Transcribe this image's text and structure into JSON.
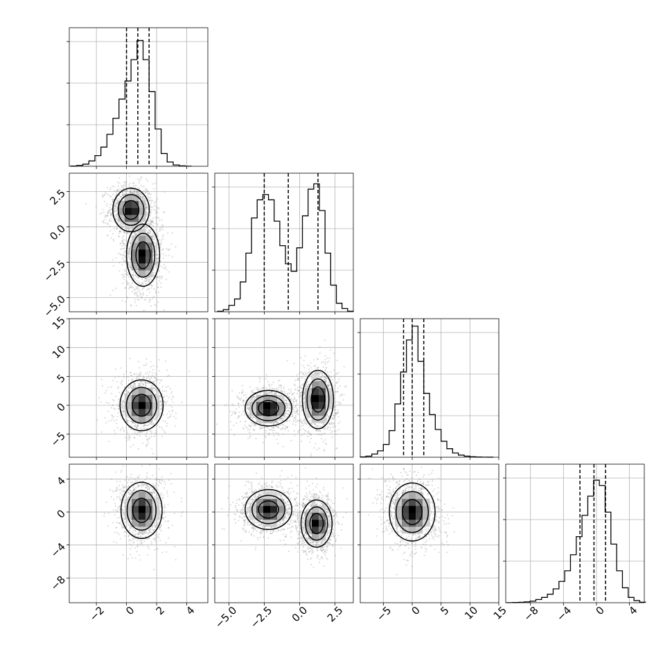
{
  "chart_data": {
    "type": "corner",
    "description_note": "",
    "grid": true,
    "colors": {
      "line": "#000000",
      "grid": "#b0b0b0",
      "scatter": "#9a9a9a",
      "background": "#ffffff"
    },
    "diagonal": [
      {
        "type": "histogram",
        "param": 0,
        "xlim": [
          -3.8,
          5.4
        ],
        "ylim": [
          0,
          1.3
        ],
        "bins": [
          -3.5,
          -3.1,
          -2.7,
          -2.3,
          -1.9,
          -1.5,
          -1.1,
          -0.7,
          -0.3,
          0.1,
          0.5,
          0.9,
          1.3,
          1.7,
          2.1,
          2.5,
          2.9,
          3.3,
          3.7,
          4.1
        ],
        "counts": [
          0.002,
          0.008,
          0.02,
          0.05,
          0.1,
          0.18,
          0.3,
          0.45,
          0.63,
          0.8,
          1.0,
          1.18,
          1.0,
          0.7,
          0.35,
          0.12,
          0.04,
          0.012,
          0.004,
          0.001
        ],
        "quantiles": [
          0.0,
          0.75,
          1.5
        ]
      },
      {
        "type": "histogram",
        "param": 1,
        "xlim": [
          -6.0,
          3.8
        ],
        "ylim": [
          0,
          1.3
        ],
        "bins": [
          -5.6,
          -5.2,
          -4.8,
          -4.4,
          -4.0,
          -3.6,
          -3.2,
          -2.8,
          -2.4,
          -2.0,
          -1.6,
          -1.2,
          -0.8,
          -0.4,
          0.0,
          0.4,
          0.8,
          1.2,
          1.6,
          2.0,
          2.4,
          2.8,
          3.2,
          3.6
        ],
        "counts": [
          0.005,
          0.02,
          0.06,
          0.12,
          0.28,
          0.55,
          0.88,
          1.05,
          1.1,
          1.05,
          0.85,
          0.62,
          0.45,
          0.38,
          0.6,
          0.9,
          1.15,
          1.2,
          0.95,
          0.55,
          0.25,
          0.08,
          0.03,
          0.005
        ],
        "quantiles": [
          -2.5,
          -0.8,
          1.3
        ]
      },
      {
        "type": "histogram",
        "param": 2,
        "xlim": [
          -9.0,
          15.0
        ],
        "ylim": [
          0,
          1.3
        ],
        "bins": [
          -8.5,
          -7.5,
          -6.5,
          -5.5,
          -4.5,
          -3.5,
          -2.5,
          -1.5,
          -0.5,
          0.5,
          1.5,
          2.5,
          3.5,
          4.5,
          5.5,
          6.5,
          7.5,
          8.5,
          9.5,
          10.5,
          11.5,
          12.5,
          13.5
        ],
        "counts": [
          0.003,
          0.01,
          0.03,
          0.06,
          0.12,
          0.25,
          0.5,
          0.8,
          1.1,
          1.23,
          0.9,
          0.6,
          0.4,
          0.26,
          0.15,
          0.08,
          0.04,
          0.02,
          0.01,
          0.005,
          0.002,
          0.001,
          0.0005
        ],
        "quantiles": [
          -1.5,
          0.0,
          2.0
        ]
      },
      {
        "type": "histogram",
        "param": 3,
        "xlim": [
          -11.0,
          5.8
        ],
        "ylim": [
          0,
          1.3
        ],
        "bins": [
          -10.5,
          -9.8,
          -9.1,
          -8.4,
          -7.7,
          -7.0,
          -6.3,
          -5.6,
          -4.9,
          -4.2,
          -3.5,
          -2.8,
          -2.1,
          -1.4,
          -0.7,
          0.0,
          0.7,
          1.4,
          2.1,
          2.8,
          3.5,
          4.2,
          4.9,
          5.6
        ],
        "counts": [
          0.001,
          0.002,
          0.004,
          0.008,
          0.015,
          0.03,
          0.05,
          0.08,
          0.13,
          0.2,
          0.3,
          0.45,
          0.62,
          0.82,
          1.0,
          1.15,
          1.1,
          0.85,
          0.55,
          0.3,
          0.14,
          0.05,
          0.02,
          0.005
        ],
        "quantiles": [
          -2.0,
          -0.3,
          1.1
        ]
      }
    ],
    "off_diagonal": [
      {
        "type": "scatter+contour",
        "x_param": 0,
        "y_param": 1,
        "xlim": [
          -3.8,
          5.4
        ],
        "ylim": [
          -6.0,
          3.8
        ],
        "modes": [
          {
            "x": 0.3,
            "y": 1.2,
            "sx": 0.55,
            "sy": 0.7,
            "rho": 0.0
          },
          {
            "x": 1.1,
            "y": -2.0,
            "sx": 0.5,
            "sy": 1.0,
            "rho": 0.0
          }
        ]
      },
      {
        "type": "scatter+contour",
        "x_param": 0,
        "y_param": 2,
        "xlim": [
          -3.8,
          5.4
        ],
        "ylim": [
          -9.0,
          15.0
        ],
        "modes": [
          {
            "x": 1.0,
            "y": 0.0,
            "sx": 0.65,
            "sy": 2.0,
            "rho": 0.0
          }
        ]
      },
      {
        "type": "scatter+contour",
        "x_param": 1,
        "y_param": 2,
        "xlim": [
          -6.0,
          3.8
        ],
        "ylim": [
          -9.0,
          15.0
        ],
        "modes": [
          {
            "x": -2.2,
            "y": -0.5,
            "sx": 0.75,
            "sy": 1.4,
            "rho": 0.0
          },
          {
            "x": 1.3,
            "y": 1.0,
            "sx": 0.5,
            "sy": 2.3,
            "rho": 0.0
          }
        ]
      },
      {
        "type": "scatter+contour",
        "x_param": 0,
        "y_param": 3,
        "xlim": [
          -3.8,
          5.4
        ],
        "ylim": [
          -11.0,
          5.8
        ],
        "modes": [
          {
            "x": 1.0,
            "y": 0.2,
            "sx": 0.62,
            "sy": 1.55,
            "rho": 0.0
          }
        ]
      },
      {
        "type": "scatter+contour",
        "x_param": 1,
        "y_param": 3,
        "xlim": [
          -6.0,
          3.8
        ],
        "ylim": [
          -11.0,
          5.8
        ],
        "modes": [
          {
            "x": -2.2,
            "y": 0.3,
            "sx": 0.75,
            "sy": 1.1,
            "rho": 0.0
          },
          {
            "x": 1.2,
            "y": -1.4,
            "sx": 0.5,
            "sy": 1.3,
            "rho": 0.0
          }
        ]
      },
      {
        "type": "scatter+contour",
        "x_param": 2,
        "y_param": 3,
        "xlim": [
          -9.0,
          15.0
        ],
        "ylim": [
          -11.0,
          5.8
        ],
        "modes": [
          {
            "x": 0.0,
            "y": 0.0,
            "sx": 1.8,
            "sy": 1.6,
            "rho": -0.15
          }
        ]
      }
    ],
    "x_ticks": [
      {
        "param": 0,
        "values": [
          -2,
          0,
          2,
          4
        ],
        "labels": [
          "−2",
          "0",
          "2",
          "4"
        ]
      },
      {
        "param": 1,
        "values": [
          -5.0,
          -2.5,
          0.0,
          2.5
        ],
        "labels": [
          "−5.0",
          "−2.5",
          "0.0",
          "2.5"
        ]
      },
      {
        "param": 2,
        "values": [
          -5,
          0,
          5,
          10,
          15
        ],
        "labels": [
          "−5",
          "0",
          "5",
          "10",
          "15"
        ]
      },
      {
        "param": 3,
        "values": [
          -8,
          -4,
          0,
          4
        ],
        "labels": [
          "−8",
          "−4",
          "0",
          "4"
        ]
      }
    ],
    "y_ticks": [
      {
        "param": 1,
        "values": [
          2.5,
          0.0,
          -2.5,
          -5.0
        ],
        "labels": [
          "2.5",
          "0.0",
          "−2.5",
          "−5.0"
        ]
      },
      {
        "param": 2,
        "values": [
          15,
          10,
          5,
          0,
          -5
        ],
        "labels": [
          "15",
          "10",
          "5",
          "0",
          "−5"
        ]
      },
      {
        "param": 3,
        "values": [
          4,
          0,
          -4,
          -8
        ],
        "labels": [
          "4",
          "0",
          "−4",
          "−8"
        ]
      }
    ]
  }
}
